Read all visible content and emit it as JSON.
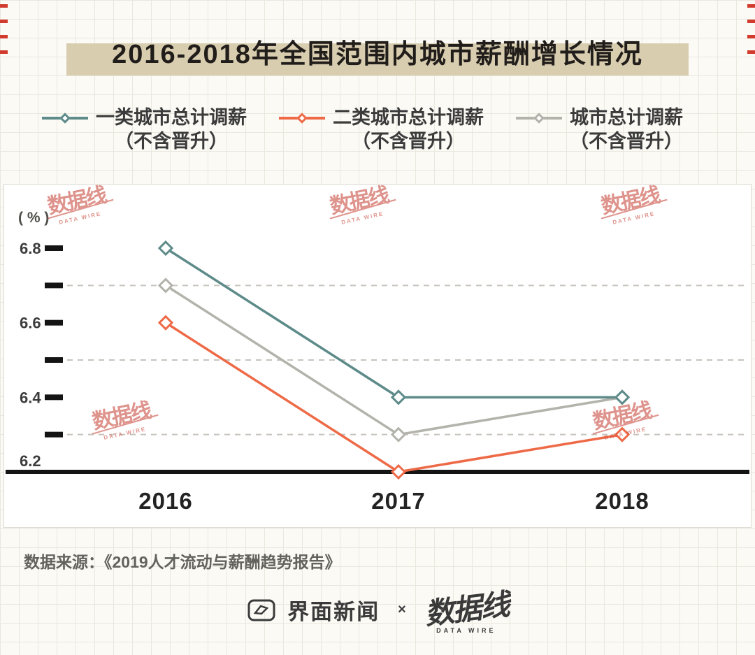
{
  "title": "2016-2018年全国范围内城市薪酬增长情况",
  "colors": {
    "banner": "#d9cdb0",
    "accent_red": "#d13a2c",
    "watermark": "#c8473a",
    "axis": "#141414"
  },
  "legend": [
    {
      "label": "一类城市总计调薪",
      "sublabel": "（不含晋升）",
      "color": "#5d8b89"
    },
    {
      "label": "二类城市总计调薪",
      "sublabel": "（不含晋升）",
      "color": "#ee6a47"
    },
    {
      "label": "城市总计调薪",
      "sublabel": "（不含晋升）",
      "color": "#b3b3ac"
    }
  ],
  "chart_data": {
    "type": "line",
    "unit_label": "( % )",
    "x": [
      "2016",
      "2017",
      "2018"
    ],
    "series": [
      {
        "name": "一类城市总计调薪（不含晋升）",
        "color": "#5d8b89",
        "values": [
          6.8,
          6.4,
          6.4
        ]
      },
      {
        "name": "二类城市总计调薪（不含晋升）",
        "color": "#ee6a47",
        "values": [
          6.6,
          6.2,
          6.3
        ]
      },
      {
        "name": "城市总计调薪（不含晋升）",
        "color": "#b3b3ac",
        "values": [
          6.7,
          6.3,
          6.4
        ]
      }
    ],
    "ylim": [
      6.2,
      6.85
    ],
    "yticks_labeled": [
      6.2,
      6.4,
      6.6,
      6.8
    ],
    "yticks_all": [
      6.3,
      6.4,
      6.5,
      6.6,
      6.7,
      6.8
    ],
    "gridlines": [
      6.3,
      6.5,
      6.7
    ],
    "marker": "diamond",
    "grid": "dashed-horizontal",
    "legend_position": "top"
  },
  "watermark": {
    "text": "数据线",
    "subtext": "DATA WIRE"
  },
  "source": "数据来源：《2019人才流动与薪酬趋势报告》",
  "footer": {
    "brand1": "界面新闻",
    "times": "×",
    "brand2": "数据线",
    "brand2_sub": "DATA WIRE"
  }
}
